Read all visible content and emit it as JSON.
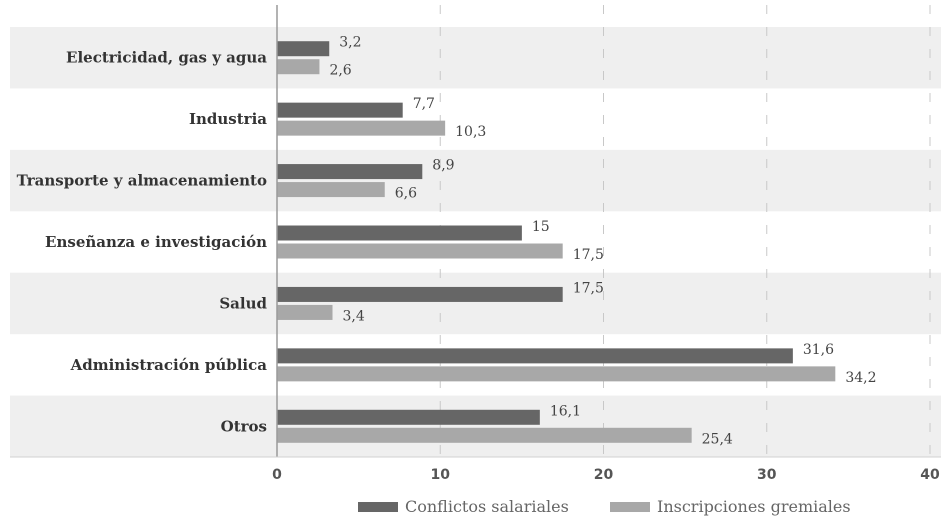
{
  "chart_data": {
    "type": "bar",
    "orientation": "horizontal",
    "categories": [
      "Electricidad, gas y agua",
      "Industria",
      "Transporte y almacenamiento",
      "Enseñanza e investigación",
      "Salud",
      "Administración pública",
      "Otros"
    ],
    "series": [
      {
        "name": "Conflictos salariales",
        "values": [
          3.2,
          7.7,
          8.9,
          15,
          17.5,
          31.6,
          16.1
        ],
        "labels": [
          "3,2",
          "7,7",
          "8,9",
          "15",
          "17,5",
          "31,6",
          "16,1"
        ],
        "color": "#666666"
      },
      {
        "name": "Inscripciones gremiales",
        "values": [
          2.6,
          10.3,
          6.6,
          17.5,
          3.4,
          34.2,
          25.4
        ],
        "labels": [
          "2,6",
          "10,3",
          "6,6",
          "17,5",
          "3,4",
          "34,2",
          "25,4"
        ],
        "color": "#a8a8a8"
      }
    ],
    "xlim": [
      0,
      40
    ],
    "ticks": [
      0,
      10,
      20,
      30,
      40
    ],
    "tick_labels": [
      "0",
      "10",
      "20",
      "30",
      "40"
    ],
    "grid": true,
    "legend_position": "bottom",
    "band_color": "#efefef"
  }
}
